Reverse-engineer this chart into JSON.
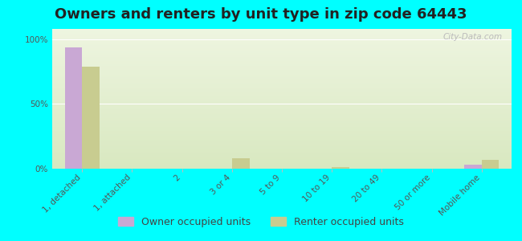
{
  "title": "Owners and renters by unit type in zip code 64443",
  "categories": [
    "1, detached",
    "1, attached",
    "2",
    "3 or 4",
    "5 to 9",
    "10 to 19",
    "20 to 49",
    "50 or more",
    "Mobile home"
  ],
  "owner_values": [
    94,
    0,
    0,
    0,
    0,
    0,
    0,
    0,
    3
  ],
  "renter_values": [
    79,
    0,
    0,
    8,
    0,
    1,
    0,
    0,
    7
  ],
  "owner_color": "#c9a8d4",
  "renter_color": "#c8cc90",
  "background_color": "#00ffff",
  "plot_bg_top": "#d8e8c0",
  "plot_bg_bottom": "#eef5e0",
  "ylabel_ticks": [
    "0%",
    "50%",
    "100%"
  ],
  "ytick_vals": [
    0,
    50,
    100
  ],
  "ylim": [
    0,
    108
  ],
  "bar_width": 0.35,
  "title_fontsize": 13,
  "tick_fontsize": 7.5,
  "legend_fontsize": 9,
  "watermark": "City-Data.com"
}
